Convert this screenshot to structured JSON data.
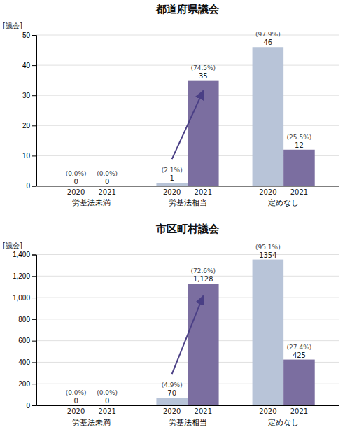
{
  "chart_data": [
    {
      "type": "bar",
      "title": "都道府県議会",
      "y_label": "[議会]",
      "categories": [
        "労基法未満",
        "労基法相当",
        "定めなし"
      ],
      "series": [
        {
          "name": "2020",
          "color": "#b8c4d8",
          "values": [
            0,
            1,
            46
          ],
          "share_labels": [
            "(0.0%)",
            "(2.1%)",
            "(97.9%)"
          ]
        },
        {
          "name": "2021",
          "color": "#7b6ea0",
          "values": [
            0,
            35,
            12
          ],
          "share_labels": [
            "(0.0%)",
            "(74.5%)",
            "(25.5%)"
          ]
        }
      ],
      "ylim": [
        0,
        50
      ],
      "yticks": [
        0,
        10,
        20,
        30,
        40,
        50
      ],
      "grid": true,
      "data_labels": true,
      "annotations": [
        {
          "type": "arrow",
          "category": "労基法相当",
          "from": "2020",
          "to": "2021",
          "color": "#4a3f85"
        }
      ]
    },
    {
      "type": "bar",
      "title": "市区町村議会",
      "y_label": "[議会]",
      "categories": [
        "労基法未満",
        "労基法相当",
        "定めなし"
      ],
      "series": [
        {
          "name": "2020",
          "color": "#b8c4d8",
          "values": [
            0,
            70,
            1354
          ],
          "share_labels": [
            "(0.0%)",
            "(4.9%)",
            "(95.1%)"
          ]
        },
        {
          "name": "2021",
          "color": "#7b6ea0",
          "values": [
            0,
            1128,
            425
          ],
          "value_labels": [
            "0",
            "1,128",
            "425"
          ],
          "share_labels": [
            "(0.0%)",
            "(72.6%)",
            "(27.4%)"
          ]
        }
      ],
      "ylim": [
        0,
        1400
      ],
      "yticks": [
        0,
        200,
        400,
        600,
        800,
        {
          "value": 1000,
          "label": "1,000"
        },
        {
          "value": 1200,
          "label": "1,200"
        },
        {
          "value": 1400,
          "label": "1,400"
        }
      ],
      "grid": true,
      "data_labels": true,
      "annotations": [
        {
          "type": "arrow",
          "category": "労基法相当",
          "from": "2020",
          "to": "2021",
          "color": "#4a3f85"
        }
      ]
    }
  ]
}
